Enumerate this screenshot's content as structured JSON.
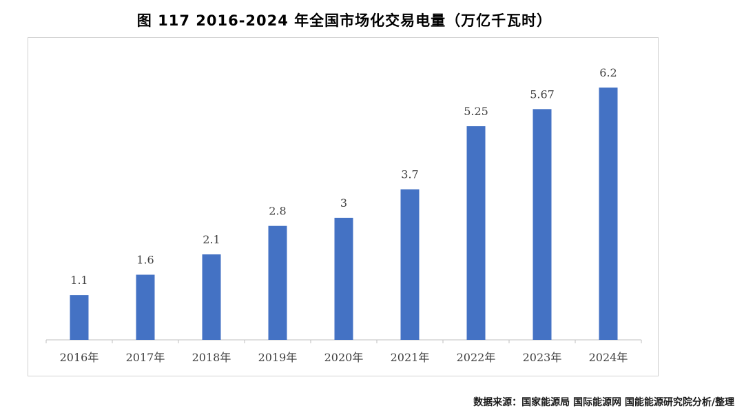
{
  "figure": {
    "title": "图 117 2016-2024 年全国市场化交易电量（万亿千瓦时）",
    "source": "数据来源：国家能源局 国际能源网 国能能源研究院分析/整理"
  },
  "colors": {
    "bar": "#4472C4",
    "axis": "#bfbfbf",
    "label": "#404040",
    "frame": "#d0d0d0"
  },
  "chart_data": {
    "type": "bar",
    "title": "图 117 2016-2024 年全国市场化交易电量（万亿千瓦时）",
    "xlabel": "",
    "ylabel": "",
    "categories": [
      "2016年",
      "2017年",
      "2018年",
      "2019年",
      "2020年",
      "2021年",
      "2022年",
      "2023年",
      "2024年"
    ],
    "values": [
      1.1,
      1.6,
      2.1,
      2.8,
      3,
      3.7,
      5.25,
      5.67,
      6.2
    ],
    "value_labels": [
      "1.1",
      "1.6",
      "2.1",
      "2.8",
      "3",
      "3.7",
      "5.25",
      "5.67",
      "6.2"
    ],
    "ylim": [
      0,
      6.2
    ],
    "grid": false,
    "legend": "none"
  }
}
